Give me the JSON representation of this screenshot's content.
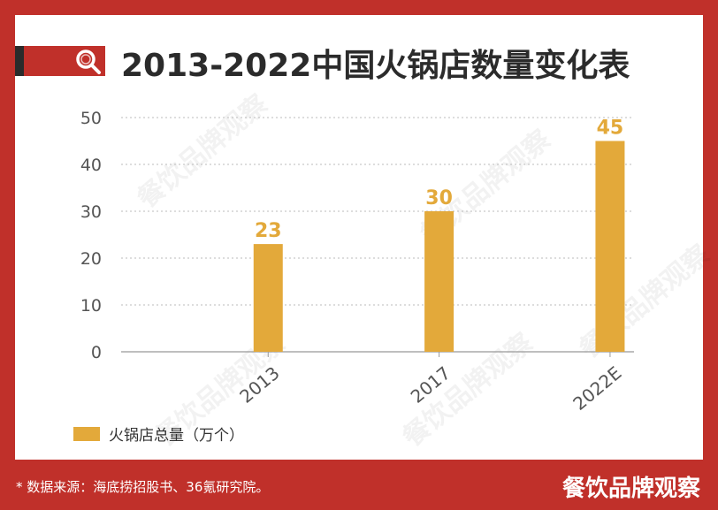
{
  "header": {
    "title": "2013-2022中国火锅店数量变化表",
    "icon": "search-icon"
  },
  "chart_data": {
    "type": "bar",
    "categories": [
      "2013",
      "2017",
      "2022E"
    ],
    "series": [
      {
        "name": "火锅店总量（万个）",
        "values": [
          23,
          30,
          45
        ]
      }
    ],
    "data_labels": [
      "23",
      "30",
      "45"
    ],
    "ylim": [
      0,
      50
    ],
    "yticks": [
      0,
      10,
      20,
      30,
      40,
      50
    ],
    "grid": true,
    "legend_position": "bottom-left",
    "bar_color": "#e3a93a"
  },
  "legend": {
    "label": "火锅店总量（万个）"
  },
  "footer": {
    "source": "* 数据来源：海底捞招股书、36氪研究院。",
    "brand": "餐饮品牌观察"
  },
  "watermark_text": "餐饮品牌观察",
  "colors": {
    "background": "#c0302a",
    "bar": "#e3a93a",
    "title": "#2b2b2b",
    "axis_text": "#555555"
  }
}
